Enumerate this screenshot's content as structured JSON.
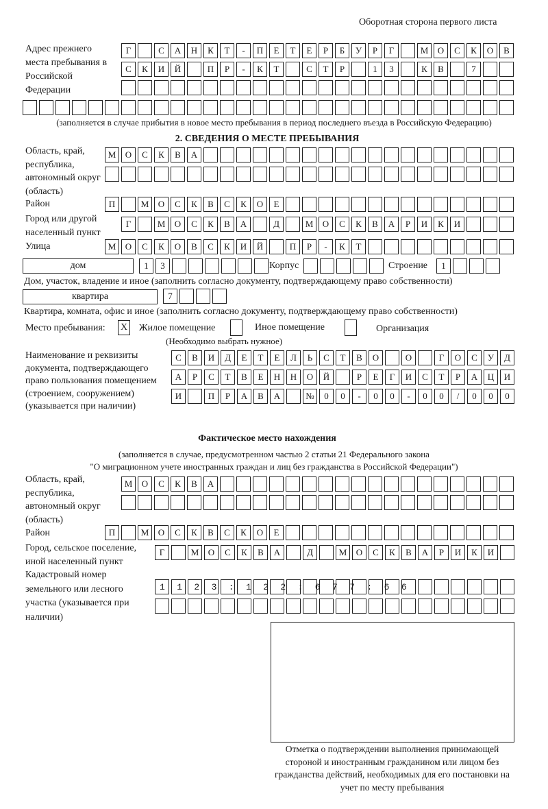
{
  "header": {
    "page_side": "Оборотная сторона первого листа"
  },
  "previous_address": {
    "label": "Адрес прежнего места пребывания в Российской Федерации",
    "rows": [
      "Г САНКТ-ПЕТЕРБУРГ МОСКОВ",
      "СКИЙ ПР-КТ СТР 13 КВ 7",
      "",
      ""
    ],
    "note": "(заполняется в случае прибытия в новое место пребывания в период последнего въезда в Российскую Федерацию)"
  },
  "stay": {
    "section_title": "2. СВЕДЕНИЯ О МЕСТЕ ПРЕБЫВАНИЯ",
    "region_label": "Область, край, республика, автономный округ (область)",
    "region_rows": [
      "МОСКВА",
      ""
    ],
    "district_label": "Район",
    "district": "П МОСКВСКОЕ",
    "city_label": "Город или другой населенный пункт",
    "city": "Г МОСКВА Д МОСКВАРИКИ",
    "street_label": "Улица",
    "street": "МОСКОВСКИЙ ПР-КТ",
    "house_type": "дом",
    "house_number": "13",
    "korpus_label": "Корпус",
    "korpus": "",
    "building_label": "Строение",
    "building": "1",
    "house_caption": "Дом, участок, владение и иное (заполнить согласно документу, подтверждающему право собственности)",
    "flat_type": "квартира",
    "flat_number": "7",
    "flat_caption": "Квартира, комната, офис и иное (заполнить согласно документу, подтверждающему право собственности)",
    "place_label": "Место пребывания:",
    "place_options": [
      {
        "label": "Жилое помещение",
        "mark": "X"
      },
      {
        "label": "Иное помещение",
        "mark": ""
      },
      {
        "label": "Организация",
        "mark": ""
      }
    ],
    "place_hint": "(Необходимо выбрать нужное)",
    "doc_label": "Наименование и реквизиты документа, подтверждающего право пользования помещением (строением, сооружением) (указывается при наличии)",
    "doc_rows": [
      "СВИДЕТЕЛЬСТВО О ГОСУД",
      "АРСТВЕННОЙ РЕГИСТРАЦИ",
      "И ПРАВА №00-00-00/000"
    ]
  },
  "actual": {
    "title": "Фактическое место нахождения",
    "note_line1": "(заполняется в случае, предусмотренном частью 2 статьи 21 Федерального закона",
    "note_line2": "\"О миграционном учете иностранных граждан и лиц без гражданства в Российской Федерации\")",
    "region_label": "Область, край, республика, автономный округ (область)",
    "region_rows": [
      "МОСКВА",
      ""
    ],
    "district_label": "Район",
    "district": "П МОСКВСКОЕ",
    "city_label": "Город, сельское поселение, иной населенный пункт",
    "city": "Г МОСКВА Д МОСКВАРИКИ",
    "cadastral_label": "Кадастровый номер земельного или лесного участка (указывается при наличии)",
    "cadastral_rows": [
      "1123:122:677:66",
      ""
    ]
  },
  "confirmation": {
    "caption": "Отметка о подтверждении выполнения принимающей стороной и иностранным гражданином или лицом без гражданства действий, необходимых для его постановки на учет по месту пребывания"
  }
}
